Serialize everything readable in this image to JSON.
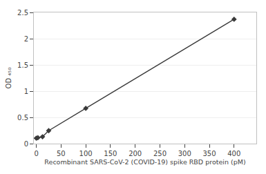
{
  "chart_data": {
    "type": "line",
    "x": [
      0,
      3.13,
      12.5,
      25,
      100,
      400
    ],
    "values": [
      0.103,
      0.113,
      0.13,
      0.247,
      0.672,
      2.37
    ],
    "color": "#3a3a3a",
    "marker": "diamond",
    "xlabel": "Recombinant SARS-CoV-2 (COVID-19) spike RBD protein (pM)",
    "ylabel": "OD ₄₅₀",
    "xlim": [
      -5,
      445
    ],
    "ylim": [
      0,
      2.5
    ],
    "xticks": [
      0,
      50,
      100,
      150,
      200,
      250,
      300,
      350,
      400
    ],
    "yticks": [
      0,
      0.5,
      1,
      1.5,
      2,
      2.5
    ],
    "grid": "y"
  }
}
